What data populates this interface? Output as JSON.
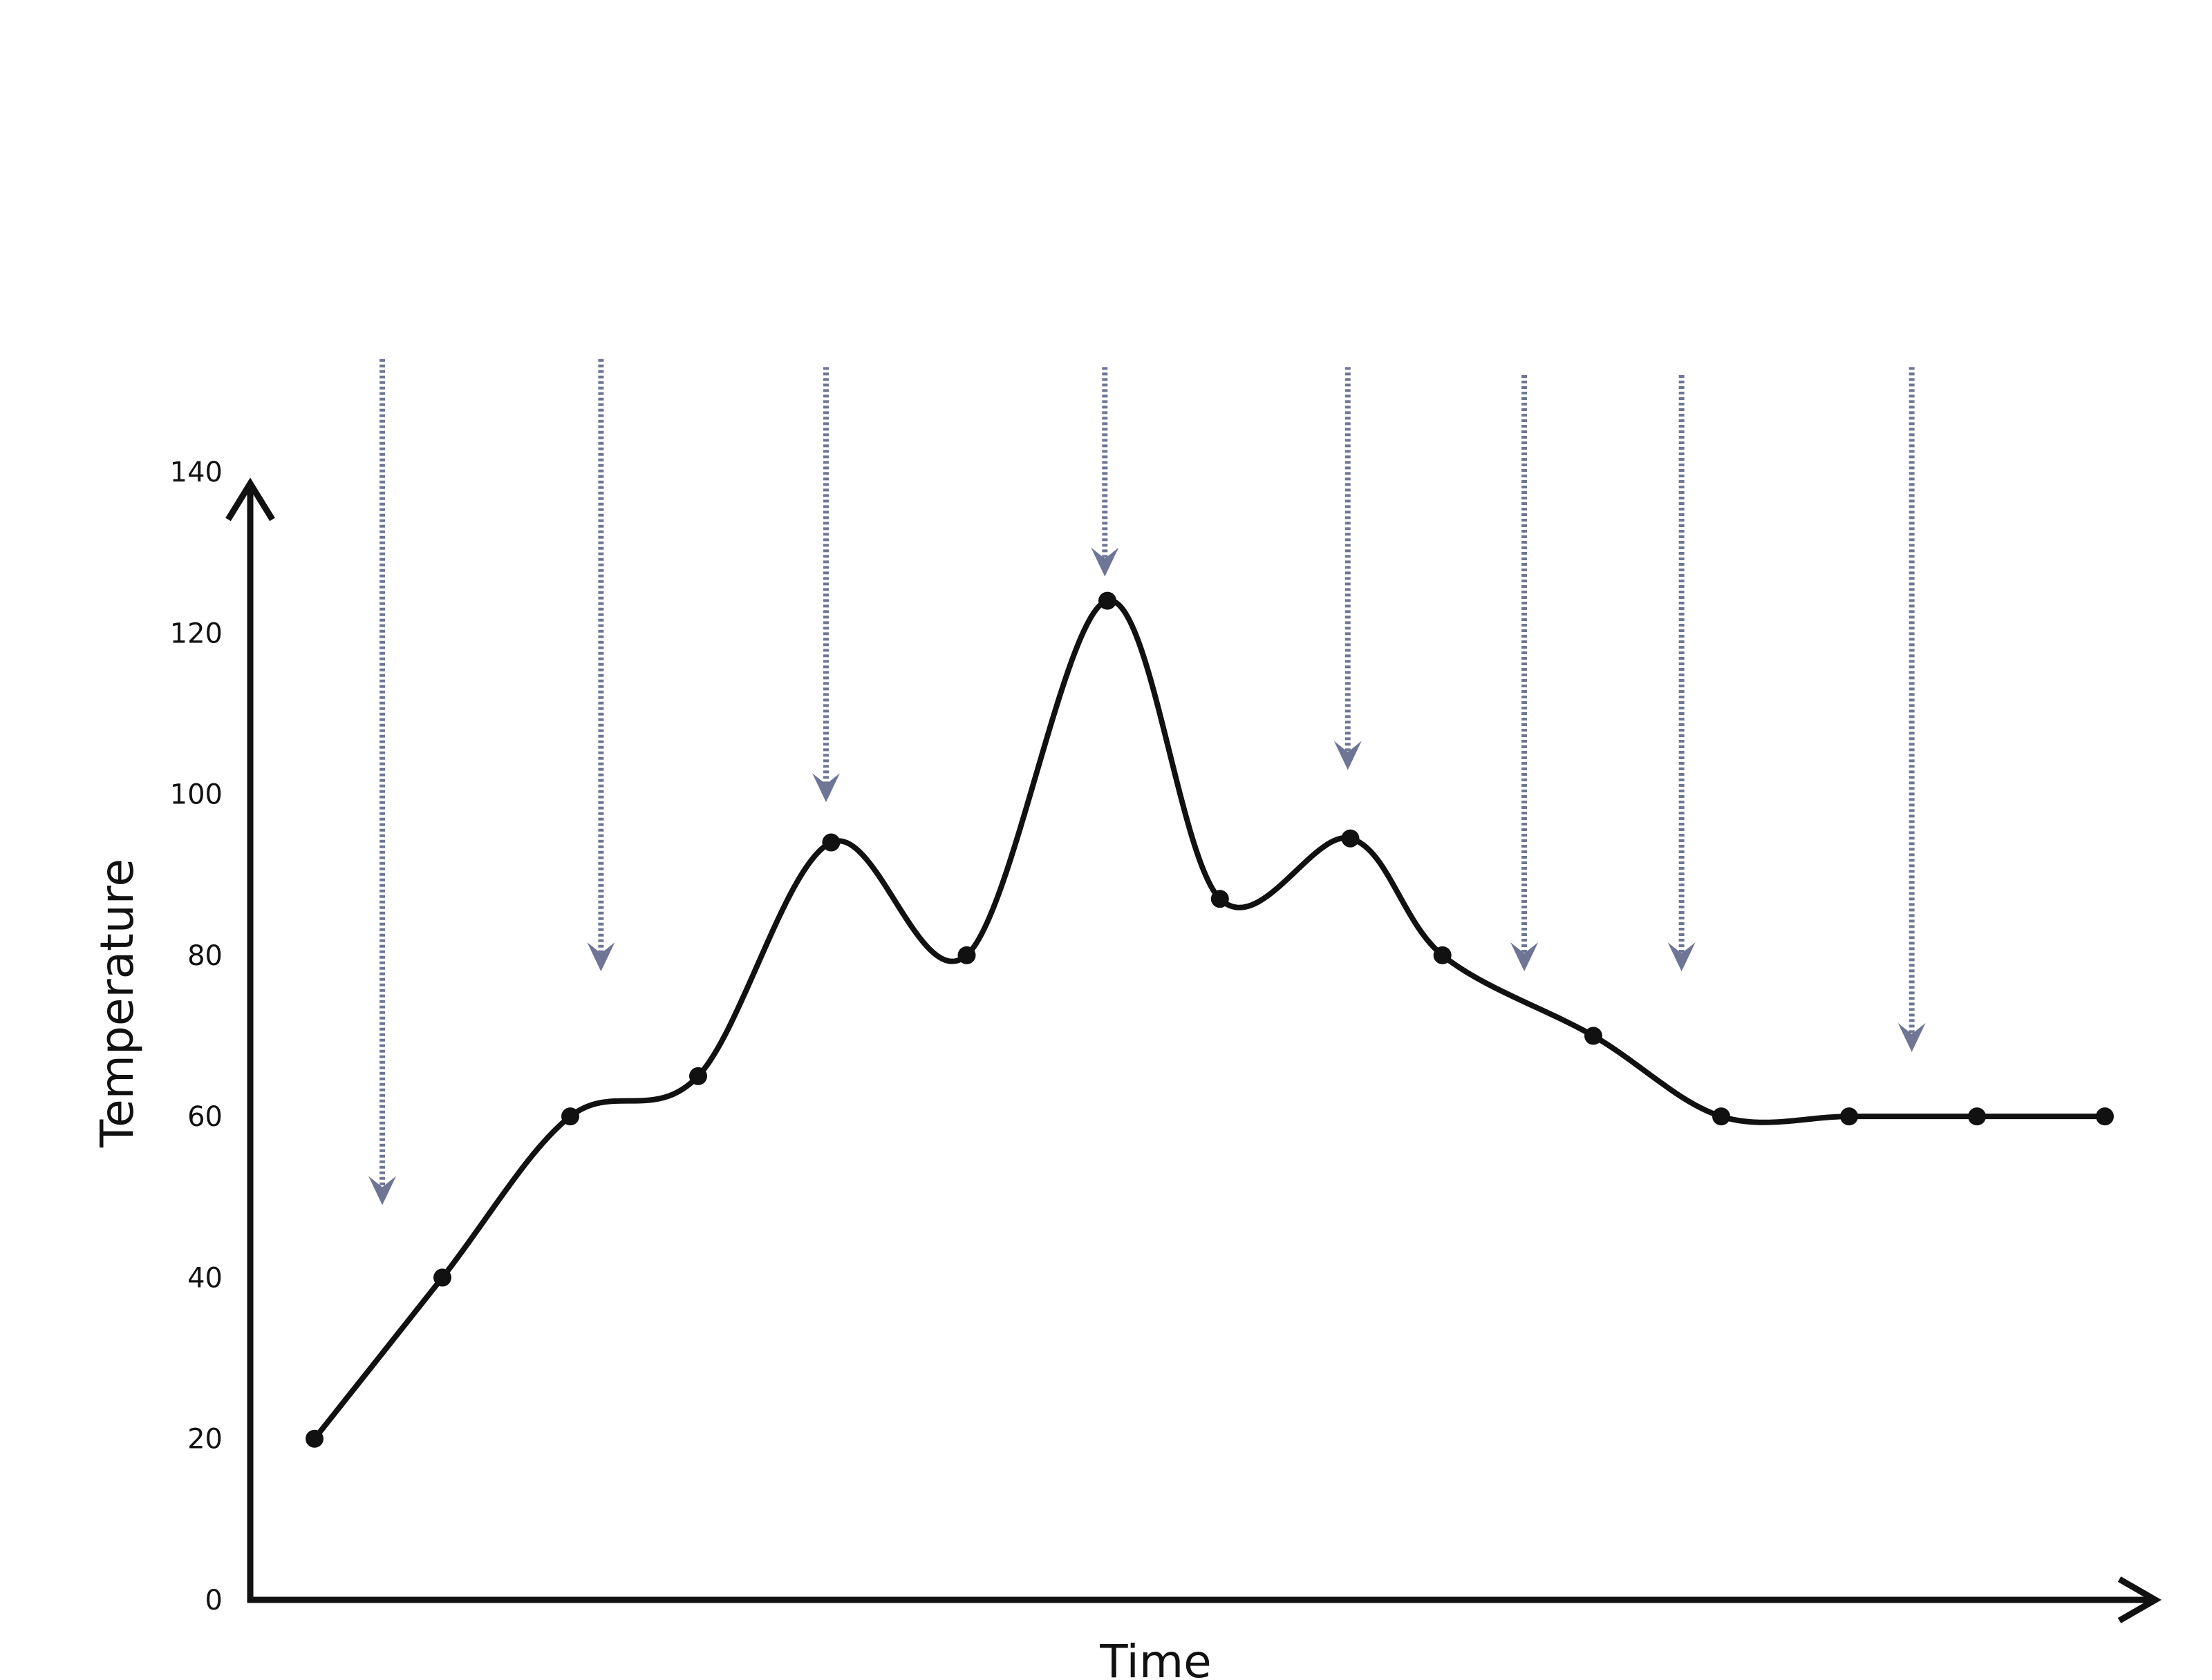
{
  "chart_data": {
    "type": "line",
    "xlabel": "Time",
    "ylabel": "Temperature",
    "ylim": [
      0,
      140
    ],
    "yticks": [
      "0",
      "20",
      "40",
      "60",
      "80",
      "100",
      "120",
      "140"
    ],
    "grid": false,
    "series": [
      {
        "points": [
          {
            "x": 0,
            "y": 20
          },
          {
            "x": 1,
            "y": 40
          },
          {
            "x": 2,
            "y": 60
          },
          {
            "x": 3,
            "y": 65
          },
          {
            "x": 4.04,
            "y": 94
          },
          {
            "x": 5.1,
            "y": 80
          },
          {
            "x": 6.2,
            "y": 124
          },
          {
            "x": 7.08,
            "y": 87
          },
          {
            "x": 8.1,
            "y": 94.5
          },
          {
            "x": 8.82,
            "y": 80
          },
          {
            "x": 10,
            "y": 70
          },
          {
            "x": 11,
            "y": 60
          },
          {
            "x": 12,
            "y": 60
          },
          {
            "x": 13,
            "y": 60
          },
          {
            "x": 14,
            "y": 60
          }
        ]
      }
    ],
    "arrows": [
      {
        "x": 0.53,
        "top": 154,
        "tip": 49
      },
      {
        "x": 2.24,
        "top": 154,
        "tip": 78
      },
      {
        "x": 4.0,
        "top": 153,
        "tip": 99
      },
      {
        "x": 6.18,
        "top": 153,
        "tip": 127
      },
      {
        "x": 8.08,
        "top": 153,
        "tip": 103
      },
      {
        "x": 9.46,
        "top": 152,
        "tip": 78
      },
      {
        "x": 10.69,
        "top": 152,
        "tip": 78
      },
      {
        "x": 12.49,
        "top": 153,
        "tip": 68
      }
    ],
    "colors": {
      "line": "#111111",
      "arrow": "#6e7595",
      "axis": "#111111"
    }
  }
}
